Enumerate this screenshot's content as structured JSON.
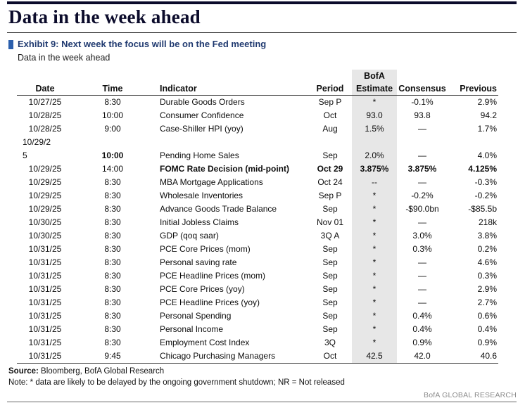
{
  "page": {
    "title": "Data in the week ahead"
  },
  "exhibit": {
    "label": "Exhibit 9: Next week the focus will be on the Fed meeting",
    "subtitle": "Data in the week ahead"
  },
  "table": {
    "estimate_superheader": "BofA",
    "columns": [
      "Date",
      "Time",
      "Indicator",
      "Period",
      "Estimate",
      "Consensus",
      "Previous"
    ],
    "rows": [
      {
        "date": "10/27/25",
        "time": "8:30",
        "indicator": "Durable Goods Orders",
        "period": "Sep P",
        "estimate": "*",
        "consensus": "-0.1%",
        "previous": "2.9%"
      },
      {
        "date": "10/28/25",
        "time": "10:00",
        "indicator": "Consumer Confidence",
        "period": "Oct",
        "estimate": "93.0",
        "consensus": "93.8",
        "previous": "94.2"
      },
      {
        "date": "10/28/25",
        "time": "9:00",
        "indicator": "Case-Shiller HPI (yoy)",
        "period": "Aug",
        "estimate": "1.5%",
        "consensus": "—",
        "previous": "1.7%"
      },
      {
        "date": "10/29/2\n5",
        "time": "10:00",
        "indicator": "Pending Home Sales",
        "period": "Sep",
        "estimate": "2.0%",
        "consensus": "—",
        "previous": "4.0%",
        "wrap_date": true,
        "bold_time": true
      },
      {
        "date": "10/29/25",
        "time": "14:00",
        "indicator": "FOMC Rate Decision (mid-point)",
        "period": "Oct 29",
        "estimate": "3.875%",
        "consensus": "3.875%",
        "previous": "4.125%",
        "bold_row": true
      },
      {
        "date": "10/29/25",
        "time": "8:30",
        "indicator": "MBA Mortgage Applications",
        "period": "Oct 24",
        "estimate": "--",
        "consensus": "—",
        "previous": "-0.3%"
      },
      {
        "date": "10/29/25",
        "time": "8:30",
        "indicator": "Wholesale Inventories",
        "period": "Sep P",
        "estimate": "*",
        "consensus": "-0.2%",
        "previous": "-0.2%"
      },
      {
        "date": "10/29/25",
        "time": "8:30",
        "indicator": "Advance Goods Trade Balance",
        "period": "Sep",
        "estimate": "*",
        "consensus": "-$90.0bn",
        "previous": "-$85.5b"
      },
      {
        "date": "10/30/25",
        "time": "8:30",
        "indicator": "Initial Jobless Claims",
        "period": "Nov 01",
        "estimate": "*",
        "consensus": "—",
        "previous": "218k"
      },
      {
        "date": "10/30/25",
        "time": "8:30",
        "indicator": "GDP (qoq saar)",
        "period": "3Q A",
        "estimate": "*",
        "consensus": "3.0%",
        "previous": "3.8%"
      },
      {
        "date": "10/31/25",
        "time": "8:30",
        "indicator": "PCE Core Prices (mom)",
        "period": "Sep",
        "estimate": "*",
        "consensus": "0.3%",
        "previous": "0.2%"
      },
      {
        "date": "10/31/25",
        "time": "8:30",
        "indicator": "Personal saving rate",
        "period": "Sep",
        "estimate": "*",
        "consensus": "—",
        "previous": "4.6%"
      },
      {
        "date": "10/31/25",
        "time": "8:30",
        "indicator": "PCE Headline Prices (mom)",
        "period": "Sep",
        "estimate": "*",
        "consensus": "—",
        "previous": "0.3%"
      },
      {
        "date": "10/31/25",
        "time": "8:30",
        "indicator": "PCE Core Prices (yoy)",
        "period": "Sep",
        "estimate": "*",
        "consensus": "—",
        "previous": "2.9%"
      },
      {
        "date": "10/31/25",
        "time": "8:30",
        "indicator": "PCE Headline Prices (yoy)",
        "period": "Sep",
        "estimate": "*",
        "consensus": "—",
        "previous": "2.7%"
      },
      {
        "date": "10/31/25",
        "time": "8:30",
        "indicator": "Personal Spending",
        "period": "Sep",
        "estimate": "*",
        "consensus": "0.4%",
        "previous": "0.6%"
      },
      {
        "date": "10/31/25",
        "time": "8:30",
        "indicator": "Personal Income",
        "period": "Sep",
        "estimate": "*",
        "consensus": "0.4%",
        "previous": "0.4%"
      },
      {
        "date": "10/31/25",
        "time": "8:30",
        "indicator": "Employment Cost Index",
        "period": "3Q",
        "estimate": "*",
        "consensus": "0.9%",
        "previous": "0.9%"
      },
      {
        "date": "10/31/25",
        "time": "9:45",
        "indicator": "Chicago Purchasing Managers",
        "period": "Oct",
        "estimate": "42.5",
        "consensus": "42.0",
        "previous": "40.6"
      }
    ]
  },
  "footer": {
    "source_label": "Source:",
    "source_text": " Bloomberg, BofA Global Research",
    "note": "Note: * data are likely to be delayed by the ongoing government shutdown; NR = Not released",
    "brand": "BofA GLOBAL RESEARCH"
  },
  "colors": {
    "accent_blue": "#2b5fad",
    "exhibit_text_blue": "#203a70",
    "title_navy": "#0b0b2b",
    "estimate_shade": "#e7e7e7",
    "brand_gray": "#8c8c8c"
  }
}
